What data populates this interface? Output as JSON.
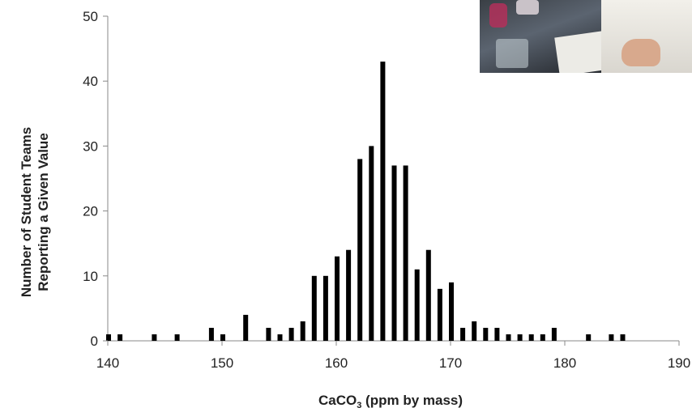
{
  "chart_data": {
    "type": "bar",
    "xlabel_main": "CaCO",
    "xlabel_sub": "3",
    "xlabel_rest": " (ppm by mass)",
    "ylabel_line1": "Number of Student Teams",
    "ylabel_line2": "Reporting a Given Value",
    "xlim": [
      140,
      190
    ],
    "ylim": [
      0,
      50
    ],
    "xticks": [
      140,
      150,
      160,
      170,
      180,
      190
    ],
    "yticks": [
      0,
      10,
      20,
      30,
      40,
      50
    ],
    "x": [
      140,
      141,
      144,
      146,
      149,
      150,
      152,
      154,
      155,
      156,
      157,
      158,
      159,
      160,
      161,
      162,
      163,
      164,
      165,
      166,
      167,
      168,
      169,
      170,
      171,
      172,
      173,
      174,
      175,
      176,
      177,
      178,
      179,
      182,
      184,
      185
    ],
    "values": [
      1,
      1,
      1,
      1,
      2,
      1,
      4,
      2,
      1,
      2,
      3,
      10,
      10,
      13,
      14,
      28,
      30,
      43,
      27,
      27,
      11,
      14,
      8,
      9,
      2,
      3,
      2,
      2,
      1,
      1,
      1,
      1,
      2,
      1,
      1,
      1
    ],
    "bar_color": "#000000",
    "grid": false
  },
  "photo": {
    "name": "lab-photo"
  }
}
